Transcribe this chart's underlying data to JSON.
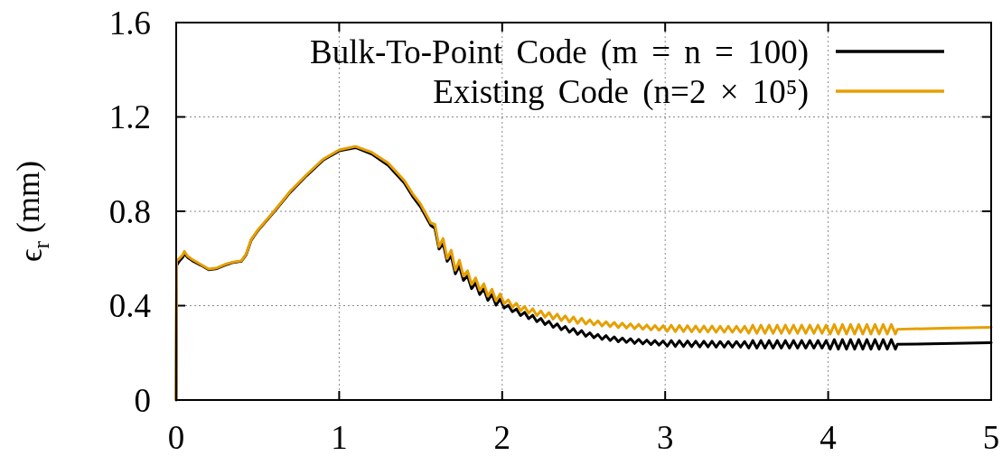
{
  "chart_data": {
    "type": "line",
    "ylabel": "ϵ$_{r}$ (mm)",
    "xlim": [
      0,
      5
    ],
    "xticks": [
      0,
      1,
      2,
      3,
      4,
      5
    ],
    "ylim": [
      0,
      1.6
    ],
    "yticks": [
      0,
      0.4,
      0.8,
      1.2,
      1.6
    ],
    "grid": true,
    "legend": "top right",
    "x": [
      0,
      0.003,
      0.02,
      0.04,
      0.05,
      0.07,
      0.1,
      0.15,
      0.2,
      0.25,
      0.3,
      0.35,
      0.4,
      0.43,
      0.46,
      0.5,
      0.6,
      0.7,
      0.8,
      0.9,
      1.0,
      1.1,
      1.2,
      1.3,
      1.4,
      1.45,
      1.5,
      1.5625,
      1.5875,
      1.6125,
      1.6375,
      1.6625,
      1.6875,
      1.7125,
      1.7375,
      1.7625,
      1.7875,
      1.8125,
      1.8375,
      1.8625,
      1.8875,
      1.9125,
      1.9375,
      1.9625,
      1.9875,
      2.0125,
      2.0375,
      2.0625,
      2.0875,
      2.1125,
      2.1375,
      2.1625,
      2.1875,
      2.2125,
      2.2375,
      2.2625,
      2.2875,
      2.3125,
      2.3375,
      2.3625,
      2.3875,
      2.4125,
      2.4375,
      2.4625,
      2.4875,
      2.5125,
      2.5375,
      2.5625,
      2.5875,
      2.6125,
      2.6375,
      2.6625,
      2.6875,
      2.7125,
      2.7375,
      2.7625,
      2.7875,
      2.8125,
      2.8375,
      2.8625,
      2.8875,
      2.9125,
      2.9375,
      2.9625,
      2.9875,
      3.0125,
      3.0375,
      3.0625,
      3.0875,
      3.1125,
      3.1375,
      3.1625,
      3.1875,
      3.2125,
      3.2375,
      3.2625,
      3.2875,
      3.3125,
      3.3375,
      3.3625,
      3.3875,
      3.4125,
      3.4375,
      3.4625,
      3.4875,
      3.5125,
      3.5375,
      3.5625,
      3.5875,
      3.6125,
      3.6375,
      3.6625,
      3.6875,
      3.7125,
      3.7375,
      3.7625,
      3.7875,
      3.8125,
      3.8375,
      3.8625,
      3.8875,
      3.9125,
      3.9375,
      3.9625,
      3.9875,
      4.0125,
      4.0375,
      4.0625,
      4.0875,
      4.1125,
      4.1375,
      4.1625,
      4.1875,
      4.2125,
      4.2375,
      4.2625,
      4.2875,
      4.3125,
      4.3375,
      4.3625,
      4.3875,
      4.4125,
      4.425,
      4.7,
      5.0
    ],
    "series": [
      {
        "name": "Bulk-To-Point Code (m = n = 100)",
        "color": "#000000",
        "values": [
          0,
          0.57,
          0.59,
          0.605,
          0.62,
          0.605,
          0.59,
          0.572,
          0.552,
          0.557,
          0.572,
          0.583,
          0.588,
          0.617,
          0.677,
          0.717,
          0.797,
          0.881,
          0.951,
          1.016,
          1.056,
          1.07,
          1.043,
          0.995,
          0.92,
          0.864,
          0.818,
          0.74,
          0.728,
          0.64,
          0.664,
          0.588,
          0.611,
          0.535,
          0.568,
          0.507,
          0.526,
          0.472,
          0.496,
          0.447,
          0.471,
          0.422,
          0.448,
          0.402,
          0.428,
          0.39,
          0.402,
          0.374,
          0.386,
          0.358,
          0.372,
          0.345,
          0.359,
          0.332,
          0.346,
          0.32,
          0.334,
          0.308,
          0.323,
          0.298,
          0.312,
          0.287,
          0.303,
          0.278,
          0.294,
          0.27,
          0.285,
          0.264,
          0.278,
          0.257,
          0.273,
          0.252,
          0.268,
          0.247,
          0.263,
          0.244,
          0.26,
          0.24,
          0.257,
          0.238,
          0.254,
          0.235,
          0.252,
          0.233,
          0.25,
          0.228,
          0.252,
          0.227,
          0.251,
          0.227,
          0.25,
          0.226,
          0.249,
          0.225,
          0.249,
          0.225,
          0.249,
          0.224,
          0.248,
          0.224,
          0.248,
          0.224,
          0.248,
          0.224,
          0.248,
          0.22,
          0.252,
          0.22,
          0.252,
          0.22,
          0.252,
          0.22,
          0.252,
          0.22,
          0.252,
          0.22,
          0.252,
          0.22,
          0.252,
          0.22,
          0.252,
          0.22,
          0.252,
          0.22,
          0.252,
          0.216,
          0.256,
          0.216,
          0.256,
          0.216,
          0.256,
          0.216,
          0.256,
          0.216,
          0.256,
          0.216,
          0.256,
          0.216,
          0.256,
          0.216,
          0.256,
          0.216,
          0.236,
          0.239,
          0.243
        ]
      },
      {
        "name": "Existing Code (n=2 × 10⁵)",
        "color": "#e69f00",
        "values": [
          0,
          0.59,
          0.6,
          0.615,
          0.63,
          0.61,
          0.595,
          0.575,
          0.555,
          0.56,
          0.575,
          0.585,
          0.59,
          0.62,
          0.68,
          0.72,
          0.8,
          0.885,
          0.955,
          1.02,
          1.06,
          1.075,
          1.05,
          1.005,
          0.93,
          0.875,
          0.83,
          0.75,
          0.745,
          0.65,
          0.685,
          0.6,
          0.635,
          0.55,
          0.593,
          0.525,
          0.548,
          0.49,
          0.518,
          0.465,
          0.493,
          0.44,
          0.47,
          0.42,
          0.45,
          0.408,
          0.425,
          0.393,
          0.41,
          0.378,
          0.397,
          0.368,
          0.387,
          0.358,
          0.378,
          0.351,
          0.371,
          0.343,
          0.364,
          0.337,
          0.357,
          0.33,
          0.352,
          0.325,
          0.347,
          0.322,
          0.34,
          0.318,
          0.336,
          0.314,
          0.332,
          0.311,
          0.329,
          0.307,
          0.326,
          0.305,
          0.323,
          0.302,
          0.321,
          0.3,
          0.318,
          0.297,
          0.316,
          0.296,
          0.315,
          0.291,
          0.317,
          0.29,
          0.316,
          0.29,
          0.315,
          0.289,
          0.314,
          0.288,
          0.314,
          0.288,
          0.314,
          0.287,
          0.313,
          0.287,
          0.313,
          0.287,
          0.313,
          0.287,
          0.313,
          0.283,
          0.317,
          0.283,
          0.317,
          0.283,
          0.317,
          0.283,
          0.317,
          0.283,
          0.317,
          0.283,
          0.317,
          0.283,
          0.317,
          0.283,
          0.317,
          0.283,
          0.317,
          0.283,
          0.317,
          0.28,
          0.32,
          0.28,
          0.32,
          0.28,
          0.32,
          0.28,
          0.32,
          0.28,
          0.32,
          0.28,
          0.32,
          0.28,
          0.32,
          0.28,
          0.32,
          0.28,
          0.3,
          0.304,
          0.308
        ]
      }
    ]
  }
}
